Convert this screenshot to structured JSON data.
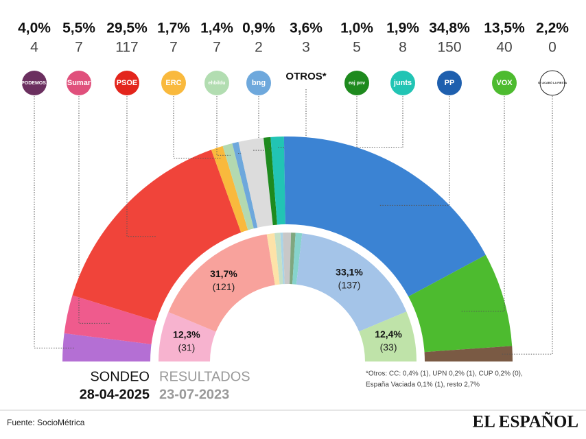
{
  "chart_data": {
    "type": "hemicycle",
    "parties": [
      {
        "logo": "PODEMOS.",
        "logo_color": "#6b2f5f",
        "color": "#b46fd4",
        "share": 4.0,
        "share_label": "4,0%",
        "seats": 4
      },
      {
        "logo": "Sumar",
        "logo_color": "#e0507c",
        "color": "#ef5b8d",
        "share": 5.5,
        "share_label": "5,5%",
        "seats": 7
      },
      {
        "logo": "PSOE",
        "logo_color": "#e3251c",
        "color": "#f0443a",
        "share": 29.5,
        "share_label": "29,5%",
        "seats": 117
      },
      {
        "logo": "ERC",
        "logo_color": "#f9b93d",
        "color": "#f9b93d",
        "share": 1.7,
        "share_label": "1,7%",
        "seats": 7
      },
      {
        "logo": "ehbildu",
        "logo_color": "#b2ddb1",
        "color": "#b3d9b0",
        "share": 1.4,
        "share_label": "1,4%",
        "seats": 7
      },
      {
        "logo": "bng",
        "logo_color": "#6ea8dc",
        "color": "#6ea8dc",
        "share": 0.9,
        "share_label": "0,9%",
        "seats": 2
      },
      {
        "logo": "OTROS*",
        "color": "#dcdcdc",
        "share": 3.6,
        "share_label": "3,6%",
        "seats": 3
      },
      {
        "logo": "eaj pnv",
        "logo_color": "#1e8a1e",
        "color": "#1e8a1e",
        "share": 1.0,
        "share_label": "1,0%",
        "seats": 5
      },
      {
        "logo": "junts",
        "logo_color": "#22c4b4",
        "color": "#22c4b4",
        "share": 1.9,
        "share_label": "1,9%",
        "seats": 8
      },
      {
        "logo": "PP",
        "logo_color": "#1e5fae",
        "color": "#3b83d3",
        "share": 34.8,
        "share_label": "34,8%",
        "seats": 150
      },
      {
        "logo": "VOX",
        "logo_color": "#4dbb2f",
        "color": "#4dbb2f",
        "share": 13.5,
        "share_label": "13,5%",
        "seats": 40
      },
      {
        "logo": "SE ACABÓ LA FIESTA",
        "logo_color": "#ffffff",
        "color": "#7a5a44",
        "share": 2.2,
        "share_label": "2,2%",
        "seats": 0
      }
    ],
    "results": [
      {
        "color": "#f7b3cf",
        "share": 12.3,
        "share_label": "12,3%",
        "seats": 31,
        "seats_label": "(31)"
      },
      {
        "color": "#f8a29c",
        "share": 31.7,
        "share_label": "31,7%",
        "seats": 121,
        "seats_label": "(121)"
      },
      {
        "color": "#fde2a8",
        "share": 1.9
      },
      {
        "color": "#c5e0c6",
        "share": 1.4
      },
      {
        "color": "#a9d4e7",
        "share": 0.6
      },
      {
        "color": "#c8c8c8",
        "share": 2.0
      },
      {
        "color": "#7fa77f",
        "share": 1.1
      },
      {
        "color": "#86d3cc",
        "share": 1.6
      },
      {
        "color": "#a4c4e8",
        "share": 33.1,
        "share_label": "33,1%",
        "seats": 137,
        "seats_label": "(137)"
      },
      {
        "color": "#bfe3a9",
        "share": 12.4,
        "share_label": "12,4%",
        "seats": 33,
        "seats_label": "(33)"
      }
    ],
    "sondeo_label": "SONDEO",
    "sondeo_date": "28-04-2025",
    "results_label": "RESULTADOS",
    "results_date": "23-07-2023",
    "footnote": [
      "*Otros: CC: 0,4% (1), UPN 0,2% (1), CUP 0,2% (0),",
      "España Vaciada 0,1% (1), resto 2,7%"
    ],
    "source": "Fuente: SocioMétrica",
    "brand": "EL ESPAÑOL"
  }
}
